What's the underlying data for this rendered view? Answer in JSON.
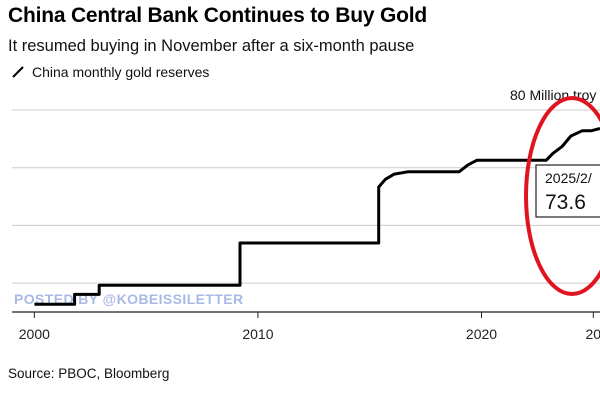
{
  "header": {
    "title": "China Central Bank Continues to Buy Gold",
    "subtitle": "It resumed buying in November after a six-month pause"
  },
  "legend": {
    "label": "China monthly gold reserves"
  },
  "annotations": {
    "unit_label": "80 Million troy",
    "tooltip_date": "2025/2/",
    "tooltip_value": "73.6",
    "watermark": "POSTED BY @KOBEISSILETTER"
  },
  "footer": {
    "source": "Source: PBOC, Bloomberg"
  },
  "colors": {
    "line": "#000000",
    "grid": "#cccccc",
    "highlight_circle": "#e0141e",
    "watermark": "#aab8e8"
  },
  "chart_data": {
    "type": "line",
    "title": "China Central Bank Continues to Buy Gold",
    "subtitle": "It resumed buying in November after a six-month pause",
    "xlabel": "",
    "ylabel": "",
    "x_ticks": [
      "2000",
      "2010",
      "2020",
      "20"
    ],
    "x_range": [
      1999.0,
      2025.3
    ],
    "y_range": [
      10,
      80
    ],
    "grid": true,
    "gridlines_y": [
      20,
      40,
      60,
      80
    ],
    "series": [
      {
        "name": "China monthly gold reserves",
        "points": [
          [
            2000.0,
            12.7
          ],
          [
            2001.8,
            12.7
          ],
          [
            2001.8,
            16.1
          ],
          [
            2002.9,
            16.1
          ],
          [
            2002.9,
            19.3
          ],
          [
            2009.2,
            19.3
          ],
          [
            2009.2,
            33.9
          ],
          [
            2015.4,
            33.9
          ],
          [
            2015.4,
            53.3
          ],
          [
            2015.7,
            56.0
          ],
          [
            2016.1,
            57.8
          ],
          [
            2016.7,
            58.6
          ],
          [
            2019.0,
            58.6
          ],
          [
            2019.4,
            61.0
          ],
          [
            2019.8,
            62.6
          ],
          [
            2022.9,
            62.6
          ],
          [
            2023.2,
            65.0
          ],
          [
            2023.6,
            67.3
          ],
          [
            2024.0,
            71.0
          ],
          [
            2024.5,
            72.8
          ],
          [
            2024.9,
            72.8
          ],
          [
            2025.3,
            73.6
          ]
        ]
      }
    ],
    "tooltip": {
      "label": "2025/2/",
      "value": 73.6
    }
  }
}
